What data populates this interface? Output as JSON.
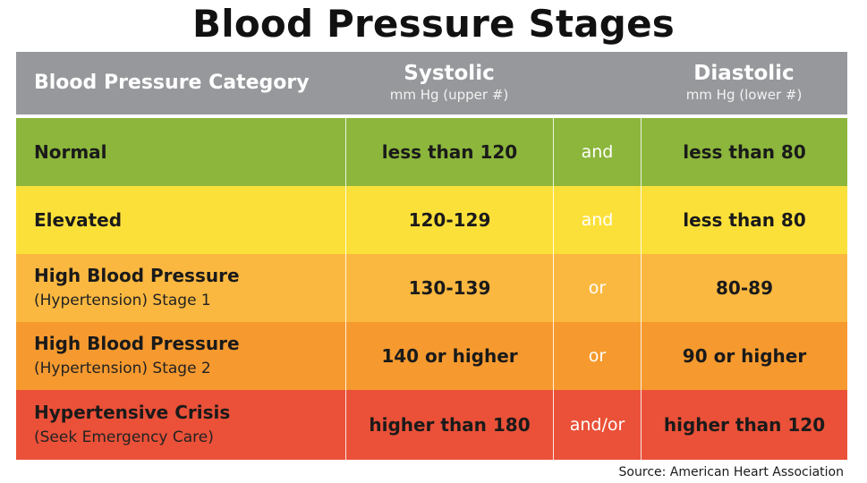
{
  "title": "Blood Pressure Stages",
  "header": {
    "category_label": "Blood Pressure Category",
    "systolic_label": "Systolic",
    "systolic_sub": "mm Hg (upper #)",
    "diastolic_label": "Diastolic",
    "diastolic_sub": "mm Hg (lower #)"
  },
  "rows": [
    {
      "category": "Normal",
      "category_sub": "",
      "systolic": "less than 120",
      "conjunction": "and",
      "diastolic": "less than 80",
      "color": "#8cb63c"
    },
    {
      "category": "Elevated",
      "category_sub": "",
      "systolic": "120-129",
      "conjunction": "and",
      "diastolic": "less than 80",
      "color": "#fce03a"
    },
    {
      "category": "High Blood Pressure",
      "category_sub": "(Hypertension) Stage 1",
      "systolic": "130-139",
      "conjunction": "or",
      "diastolic": "80-89",
      "color": "#fbb840"
    },
    {
      "category": "High Blood Pressure",
      "category_sub": "(Hypertension) Stage 2",
      "systolic": "140 or higher",
      "conjunction": "or",
      "diastolic": "90 or higher",
      "color": "#f69a2f"
    },
    {
      "category": "Hypertensive Crisis",
      "category_sub": "(Seek Emergency Care)",
      "systolic": "higher than 180",
      "conjunction": "and/or",
      "diastolic": "higher than 120",
      "color": "#ea5138"
    }
  ],
  "source": "Source: American Heart Association",
  "colors": {
    "header_bg": "#96989b"
  }
}
